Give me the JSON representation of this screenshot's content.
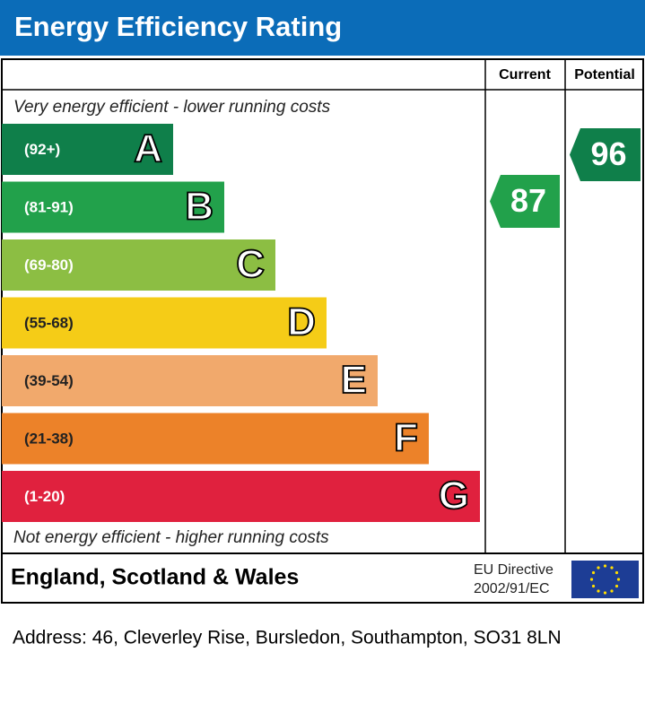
{
  "header": {
    "title": "Energy Efficiency Rating"
  },
  "columns": {
    "current": "Current",
    "potential": "Potential"
  },
  "top_note": "Very energy efficient - lower running costs",
  "bottom_note": "Not energy efficient - higher running costs",
  "bands": [
    {
      "range": "(92+)",
      "letter": "A",
      "color": "#0f7f4a"
    },
    {
      "range": "(81-91)",
      "letter": "B",
      "color": "#22a14b"
    },
    {
      "range": "(69-80)",
      "letter": "C",
      "color": "#8cbe43"
    },
    {
      "range": "(55-68)",
      "letter": "D",
      "color": "#f5cc17"
    },
    {
      "range": "(39-54)",
      "letter": "E",
      "color": "#f1a96c"
    },
    {
      "range": "(21-38)",
      "letter": "F",
      "color": "#ec8229"
    },
    {
      "range": "(1-20)",
      "letter": "G",
      "color": "#e0213e"
    }
  ],
  "ratings": {
    "current": {
      "value": 87,
      "color": "#22a14b"
    },
    "potential": {
      "value": 96,
      "color": "#0f7f4a"
    }
  },
  "footer": {
    "region": "England, Scotland & Wales",
    "directive_line1": "EU Directive",
    "directive_line2": "2002/91/EC"
  },
  "address": "Address: 46, Cleverley Rise, Bursledon, Southampton, SO31 8LN"
}
